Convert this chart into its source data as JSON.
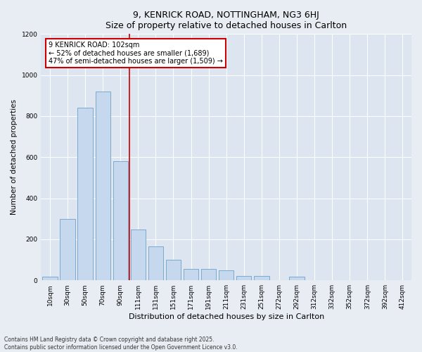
{
  "title1": "9, KENRICK ROAD, NOTTINGHAM, NG3 6HJ",
  "title2": "Size of property relative to detached houses in Carlton",
  "xlabel": "Distribution of detached houses by size in Carlton",
  "ylabel": "Number of detached properties",
  "categories": [
    "10sqm",
    "30sqm",
    "50sqm",
    "70sqm",
    "90sqm",
    "111sqm",
    "131sqm",
    "151sqm",
    "171sqm",
    "191sqm",
    "211sqm",
    "231sqm",
    "251sqm",
    "272sqm",
    "292sqm",
    "312sqm",
    "332sqm",
    "352sqm",
    "372sqm",
    "392sqm",
    "412sqm"
  ],
  "values": [
    18,
    300,
    840,
    920,
    580,
    248,
    165,
    100,
    55,
    55,
    50,
    20,
    20,
    0,
    18,
    0,
    0,
    0,
    0,
    0,
    0
  ],
  "bar_color": "#c5d8ed",
  "bar_edge_color": "#6fa0c8",
  "vline_color": "#cc0000",
  "vline_pos": 4.5,
  "annotation_text": "9 KENRICK ROAD: 102sqm\n← 52% of detached houses are smaller (1,689)\n47% of semi-detached houses are larger (1,509) →",
  "annotation_box_color": "#cc0000",
  "ylim": [
    0,
    1200
  ],
  "yticks": [
    0,
    200,
    400,
    600,
    800,
    1000,
    1200
  ],
  "footnote1": "Contains HM Land Registry data © Crown copyright and database right 2025.",
  "footnote2": "Contains public sector information licensed under the Open Government Licence v3.0.",
  "bg_color": "#e8edf3",
  "plot_bg_color": "#dce5f0",
  "grid_color": "#ffffff",
  "title_fontsize": 9,
  "xlabel_fontsize": 8,
  "ylabel_fontsize": 7.5,
  "tick_fontsize": 6.5,
  "annot_fontsize": 7,
  "footnote_fontsize": 5.5
}
